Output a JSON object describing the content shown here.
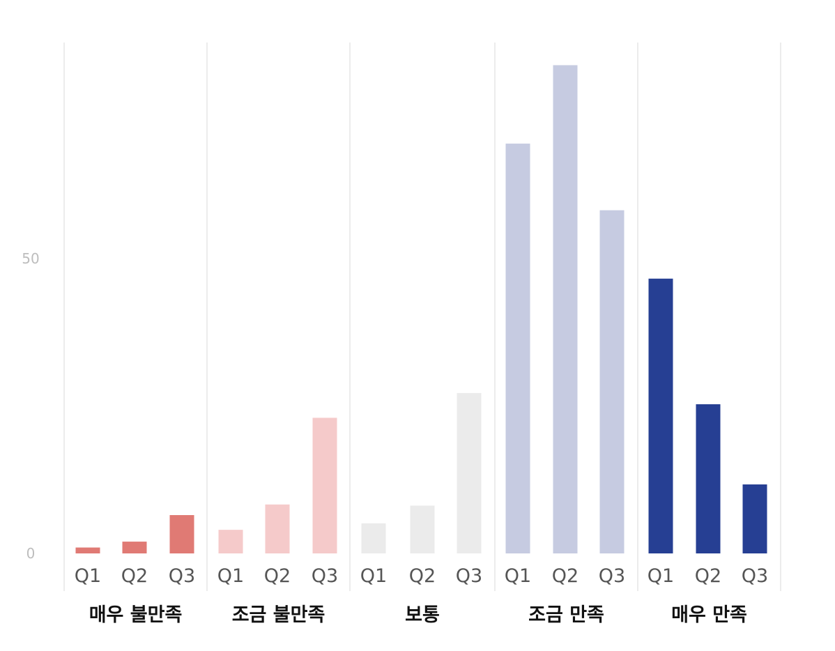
{
  "chart_data": {
    "type": "bar",
    "title": "",
    "xlabel": "",
    "ylabel": "",
    "ylim": [
      0,
      83
    ],
    "yticks": [
      0,
      50
    ],
    "grid": false,
    "legend": "none",
    "groups": [
      {
        "label": "매우 불만족",
        "color": "#e07a74",
        "categories": [
          "Q1",
          "Q2",
          "Q3"
        ],
        "values": [
          1,
          2,
          6.5
        ]
      },
      {
        "label": "조금 불만족",
        "color": "#f5caca",
        "categories": [
          "Q1",
          "Q2",
          "Q3"
        ],
        "values": [
          4,
          8.3,
          23
        ]
      },
      {
        "label": "보통",
        "color": "#ebebeb",
        "categories": [
          "Q1",
          "Q2",
          "Q3"
        ],
        "values": [
          5.1,
          8.1,
          27.2
        ]
      },
      {
        "label": "조금 만족",
        "color": "#c6cbe1",
        "categories": [
          "Q1",
          "Q2",
          "Q3"
        ],
        "values": [
          69.5,
          82.8,
          58.2
        ]
      },
      {
        "label": "매우 만족",
        "color": "#263f93",
        "categories": [
          "Q1",
          "Q2",
          "Q3"
        ],
        "values": [
          46.6,
          25.3,
          11.7
        ]
      }
    ]
  }
}
